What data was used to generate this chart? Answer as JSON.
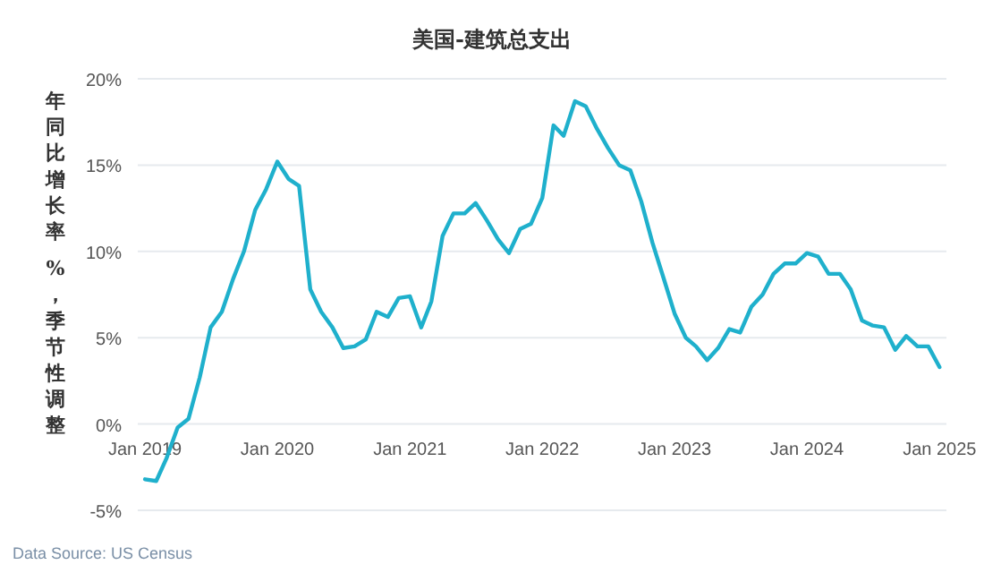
{
  "chart_data": {
    "type": "line",
    "title": "美国-建筑总支出",
    "ylabel": "年同比增长率 %，季节性调整",
    "annotations": [
      "Data Source: US Census"
    ],
    "x": [
      "2019-01",
      "2019-02",
      "2019-03",
      "2019-04",
      "2019-05",
      "2019-06",
      "2019-07",
      "2019-08",
      "2019-09",
      "2019-10",
      "2019-11",
      "2019-12",
      "2020-01",
      "2020-02",
      "2020-03",
      "2020-04",
      "2020-05",
      "2020-06",
      "2020-07",
      "2020-08",
      "2020-09",
      "2020-10",
      "2020-11",
      "2020-12",
      "2021-01",
      "2021-02",
      "2021-03",
      "2021-04",
      "2021-05",
      "2021-06",
      "2021-07",
      "2021-08",
      "2021-09",
      "2021-10",
      "2021-11",
      "2021-12",
      "2022-01",
      "2022-02",
      "2022-03",
      "2022-04",
      "2022-05",
      "2022-06",
      "2022-07",
      "2022-08",
      "2022-09",
      "2022-10",
      "2022-11",
      "2022-12",
      "2023-01",
      "2023-02",
      "2023-03",
      "2023-04",
      "2023-05",
      "2023-06",
      "2023-07",
      "2023-08",
      "2023-09",
      "2023-10",
      "2023-11",
      "2023-12",
      "2024-01",
      "2024-02",
      "2024-03",
      "2024-04",
      "2024-05",
      "2024-06",
      "2024-07",
      "2024-08",
      "2024-09",
      "2024-10",
      "2024-11",
      "2024-12",
      "2025-01"
    ],
    "series": [
      {
        "color": "#1fb0cc",
        "values": [
          -3.2,
          -3.3,
          -2.0,
          -0.2,
          0.3,
          2.7,
          5.6,
          6.5,
          8.4,
          10.0,
          12.4,
          13.6,
          15.2,
          14.2,
          13.8,
          7.8,
          6.5,
          5.6,
          4.4,
          4.5,
          4.9,
          6.5,
          6.2,
          7.3,
          7.4,
          5.6,
          7.1,
          10.9,
          12.2,
          12.2,
          12.8,
          11.8,
          10.7,
          9.9,
          11.3,
          11.6,
          13.1,
          17.3,
          16.7,
          18.7,
          18.4,
          17.1,
          16.0,
          15.0,
          14.7,
          12.9,
          10.5,
          8.5,
          6.4,
          5.0,
          4.5,
          3.7,
          4.4,
          5.5,
          5.3,
          6.8,
          7.5,
          8.7,
          9.3,
          9.3,
          9.9,
          9.7,
          8.7,
          8.7,
          7.8,
          6.0,
          5.7,
          5.6,
          4.3,
          5.1,
          4.5,
          4.5,
          3.3
        ]
      }
    ],
    "xlim": [
      "2018-12-12",
      "2025-01-20"
    ],
    "xticks": [
      {
        "value": "2019-01-01",
        "label": "Jan 2019"
      },
      {
        "value": "2020-01-01",
        "label": "Jan 2020"
      },
      {
        "value": "2021-01-01",
        "label": "Jan 2021"
      },
      {
        "value": "2022-01-01",
        "label": "Jan 2022"
      },
      {
        "value": "2023-01-01",
        "label": "Jan 2023"
      },
      {
        "value": "2024-01-01",
        "label": "Jan 2024"
      },
      {
        "value": "2025-01-01",
        "label": "Jan 2025"
      }
    ],
    "ylim": [
      -5,
      20
    ],
    "yticks": [
      {
        "value": -5,
        "label": "-5%"
      },
      {
        "value": 0,
        "label": "0%"
      },
      {
        "value": 5,
        "label": "5%"
      },
      {
        "value": 10,
        "label": "10%"
      },
      {
        "value": 15,
        "label": "15%"
      },
      {
        "value": 20,
        "label": "20%"
      }
    ],
    "grid": "y",
    "marker": "none",
    "line_style": "solid"
  }
}
